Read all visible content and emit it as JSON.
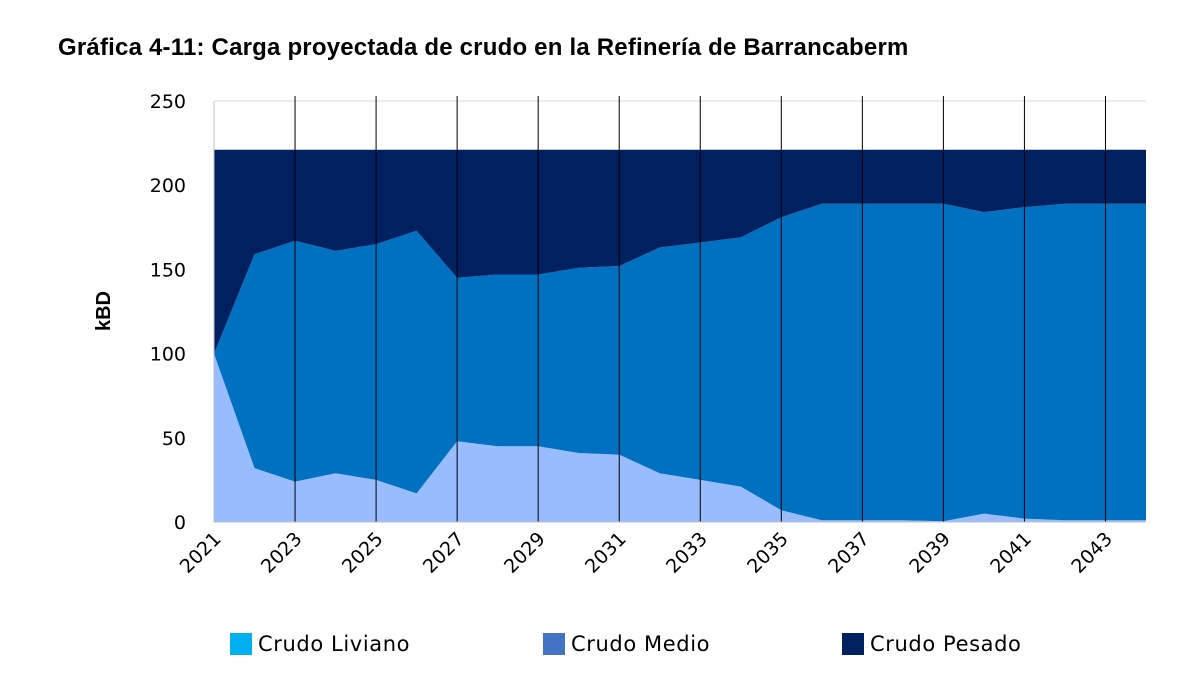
{
  "chart_data": {
    "type": "area",
    "stacked": true,
    "title": "Gráfica 4-11: Carga proyectada de crudo en la Refinería de Barrancaberm",
    "ylabel": "kBD",
    "xlabel": "",
    "ylim": [
      0,
      250
    ],
    "yticks": [
      0,
      50,
      100,
      150,
      200,
      250
    ],
    "x": [
      2021,
      2022,
      2023,
      2024,
      2025,
      2026,
      2027,
      2028,
      2029,
      2030,
      2031,
      2032,
      2033,
      2034,
      2035,
      2036,
      2037,
      2038,
      2039,
      2040,
      2041,
      2042,
      2043,
      2044
    ],
    "xtick_labels": [
      "2021",
      "2023",
      "2025",
      "2027",
      "2029",
      "2031",
      "2033",
      "2035",
      "2037",
      "2039",
      "2041",
      "2043"
    ],
    "series": [
      {
        "name": "Crudo Liviano",
        "legend_color": "#00b0f0",
        "fill_color": "#99bbff",
        "values": [
          100,
          32,
          24,
          29,
          25,
          17,
          48,
          45,
          45,
          41,
          40,
          29,
          25,
          21,
          7,
          1,
          1,
          1,
          0.5,
          5,
          2,
          1,
          1,
          1
        ]
      },
      {
        "name": "Crudo Medio",
        "legend_color": "#4472c4",
        "fill_color": "#0070c0",
        "values": [
          0,
          127,
          143,
          132,
          140,
          156,
          97,
          102,
          102,
          110,
          112,
          134,
          141,
          148,
          174,
          188,
          188,
          188,
          188.5,
          179,
          185,
          188,
          188,
          188
        ]
      },
      {
        "name": "Crudo Pesado",
        "legend_color": "#002060",
        "fill_color": "#002060",
        "values": [
          121,
          62,
          54,
          60,
          56,
          48,
          76,
          74,
          74,
          70,
          69,
          58,
          55,
          52,
          40,
          32,
          32,
          32,
          32,
          37,
          34,
          32,
          32,
          32
        ]
      }
    ],
    "grid": {
      "horizontal": true,
      "vertical": true
    },
    "legend_position": "bottom"
  }
}
